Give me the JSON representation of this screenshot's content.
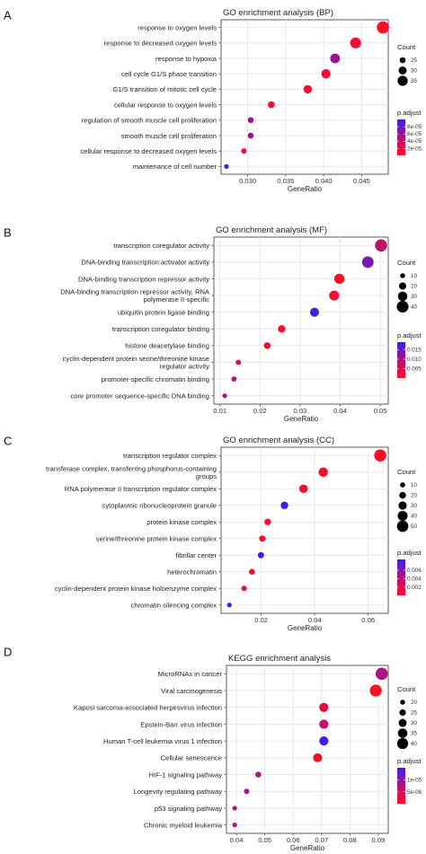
{
  "chart_data": [
    {
      "type": "scatter",
      "panel": "A",
      "title": "GO enrichment analysis (BP)",
      "xlabel": "GeneRatio",
      "ylabel": "",
      "xlim": [
        0.0265,
        0.0485
      ],
      "xticks": [
        "0.030",
        "0.035",
        "0.040",
        "0.045"
      ],
      "xtick_values": [
        0.03,
        0.035,
        0.04,
        0.045
      ],
      "grid": true,
      "legend_position": "right",
      "categories": [
        "response to oxygen levels",
        "response to decreased oxygen levels",
        "response to hypoxia",
        "cell cycle G1/S phase transition",
        "G1/S transition of mitotic cell cycle",
        "cellular response to oxygen levels",
        "regulation of smooth muscle cell proliferation",
        "smooth muscle cell proliferation",
        "cellular response to decreased oxygen levels",
        "maintenance of cell number"
      ],
      "gene_ratio": [
        0.0478,
        0.0442,
        0.0415,
        0.0403,
        0.0379,
        0.0331,
        0.0304,
        0.0304,
        0.0295,
        0.0272
      ],
      "count": [
        40,
        37,
        34,
        33,
        31,
        27,
        25,
        25,
        24,
        22
      ],
      "p_adjust": [
        1e-06,
        1e-05,
        6e-05,
        1e-05,
        1e-05,
        5e-06,
        6e-05,
        6e-05,
        1e-05,
        0.0001
      ],
      "size_legend": {
        "title": "Count",
        "labels": [
          "25",
          "30",
          "35"
        ],
        "values": [
          25,
          30,
          35
        ]
      },
      "color_legend": {
        "title": "p.adjust",
        "labels": [
          "8e-05",
          "6e-05",
          "4e-05",
          "2e-05"
        ],
        "values": [
          8e-05,
          6e-05,
          4e-05,
          2e-05
        ],
        "range": [
          1e-06,
          0.0001
        ]
      }
    },
    {
      "type": "scatter",
      "panel": "B",
      "title": "GO enrichment analysis (MF)",
      "xlabel": "GeneRatio",
      "ylabel": "",
      "xlim": [
        0.0085,
        0.052
      ],
      "xticks": [
        "0.01",
        "0.02",
        "0.03",
        "0.04",
        "0.05"
      ],
      "xtick_values": [
        0.01,
        0.02,
        0.03,
        0.04,
        0.05
      ],
      "grid": true,
      "legend_position": "right",
      "categories": [
        "transcription coregulator activity",
        "DNA-binding transcription activator activity",
        "DNA-binding transcription repressor activity",
        "DNA-binding transcription repressor activity, RNA polymerase II-specific",
        "ubiquitin protein ligase binding",
        "transcription coregulator binding",
        "histone deacetylase binding",
        "cyclin-dependent protein serine/threonine kinase regulator activity",
        "promoter-specific chromatin binding",
        "core promoter sequence-specific DNA binding"
      ],
      "gene_ratio": [
        0.0502,
        0.0469,
        0.0398,
        0.0385,
        0.0336,
        0.0254,
        0.0218,
        0.0146,
        0.0135,
        0.0112
      ],
      "count": [
        42,
        39,
        33,
        32,
        28,
        21,
        18,
        12,
        11,
        9
      ],
      "p_adjust": [
        0.008,
        0.014,
        0.001,
        0.002,
        0.018,
        0.001,
        0.002,
        0.004,
        0.009,
        0.01
      ],
      "size_legend": {
        "title": "Count",
        "labels": [
          "10",
          "20",
          "30",
          "40"
        ],
        "values": [
          10,
          20,
          30,
          40
        ]
      },
      "color_legend": {
        "title": "p.adjust",
        "labels": [
          "0.015",
          "0.010",
          "0.005"
        ],
        "values": [
          0.015,
          0.01,
          0.005
        ],
        "range": [
          0.0001,
          0.019
        ]
      }
    },
    {
      "type": "scatter",
      "panel": "C",
      "title": "GO enrichment analysis (CC)",
      "xlabel": "GeneRatio",
      "ylabel": "",
      "xlim": [
        0.005,
        0.0675
      ],
      "xticks": [
        "0.02",
        "0.04",
        "0.06"
      ],
      "xtick_values": [
        0.02,
        0.04,
        0.06
      ],
      "grid": true,
      "legend_position": "right",
      "categories": [
        "transcription regulator complex",
        "transferase complex, transferring phosphorus-containing groups",
        "RNA polymerase II transcription regulator complex",
        "cytoplasmic ribonucleoprotein granule",
        "protein kinase complex",
        "serine/threonine protein kinase complex",
        "fibrillar center",
        "heterochromatin",
        "cyclin-dependent protein kinase holoenzyme complex",
        "chromatin silencing complex"
      ],
      "gene_ratio": [
        0.0645,
        0.0432,
        0.0358,
        0.0287,
        0.0224,
        0.0204,
        0.0199,
        0.0165,
        0.0136,
        0.0081
      ],
      "count": [
        55,
        37,
        31,
        25,
        19,
        17,
        17,
        14,
        12,
        7
      ],
      "p_adjust": [
        0.0001,
        0.0002,
        0.0002,
        0.0098,
        0.0003,
        0.0003,
        0.0085,
        0.0007,
        0.0008,
        0.0099
      ],
      "size_legend": {
        "title": "Count",
        "labels": [
          "10",
          "20",
          "30",
          "40",
          "50"
        ],
        "values": [
          10,
          20,
          30,
          40,
          50
        ]
      },
      "color_legend": {
        "title": "p.adjust",
        "labels": [
          "0.006",
          "0.004",
          "0.002"
        ],
        "values": [
          0.006,
          0.004,
          0.002
        ],
        "range": [
          0.0001,
          0.0085
        ]
      }
    },
    {
      "type": "scatter",
      "panel": "D",
      "title": "KEGG enrichment analysis",
      "xlabel": "GeneRatio",
      "ylabel": "",
      "xlim": [
        0.0365,
        0.0935
      ],
      "xticks": [
        "0.04",
        "0.05",
        "0.06",
        "0.07",
        "0.08",
        "0.09"
      ],
      "xtick_values": [
        0.04,
        0.05,
        0.06,
        0.07,
        0.08,
        0.09
      ],
      "grid": true,
      "legend_position": "right",
      "categories": [
        "MicroRNAs in cancer",
        "Viral carcinogenesis",
        "Kaposi sarcoma-associated herpesvirus infection",
        "Epstein-Barr virus infection",
        "Human T-cell leukemia virus 1 infection",
        "Cellular senescence",
        "HIF-1 signaling pathway",
        "Longevity regulating pathway",
        "p53 signaling pathway",
        "Chronic myeloid leukemia"
      ],
      "gene_ratio": [
        0.0912,
        0.0891,
        0.0708,
        0.0708,
        0.0708,
        0.0686,
        0.0477,
        0.0436,
        0.0394,
        0.0394
      ],
      "count": [
        44,
        43,
        34,
        34,
        34,
        33,
        23,
        21,
        19,
        19
      ],
      "p_adjust": [
        8e-06,
        1e-07,
        3e-06,
        6e-06,
        1.5e-05,
        5e-07,
        8e-06,
        8e-06,
        8e-06,
        8e-06
      ],
      "size_legend": {
        "title": "Count",
        "labels": [
          "20",
          "25",
          "30",
          "35",
          "40"
        ],
        "values": [
          20,
          25,
          30,
          35,
          40
        ]
      },
      "color_legend": {
        "title": "p.adjust",
        "labels": [
          "1e-05",
          "5e-06"
        ],
        "values": [
          1e-05,
          5e-06
        ],
        "range": [
          1e-07,
          1.5e-05
        ]
      }
    }
  ]
}
